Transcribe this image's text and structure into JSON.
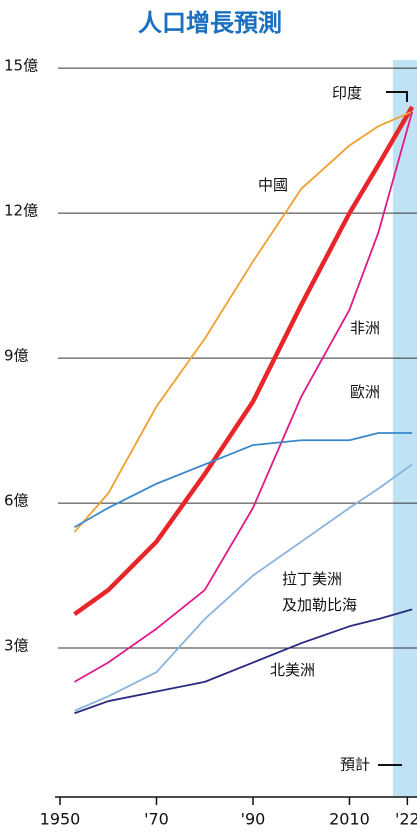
{
  "chart_data": {
    "type": "line",
    "title": "人口增長預測",
    "x": [
      1953,
      1960,
      1970,
      1980,
      1990,
      2000,
      2010,
      2016,
      2023
    ],
    "series": [
      {
        "name": "印度",
        "color": "#e8262a",
        "values": [
          3.7,
          4.2,
          5.2,
          6.6,
          8.1,
          10.1,
          12.0,
          13.0,
          14.2
        ]
      },
      {
        "name": "中國",
        "color": "#f0a030",
        "values": [
          5.4,
          6.2,
          8.0,
          9.4,
          11.0,
          12.5,
          13.4,
          13.8,
          14.1
        ]
      },
      {
        "name": "非洲",
        "color": "#e0198a",
        "values": [
          2.3,
          2.7,
          3.4,
          4.2,
          5.9,
          8.2,
          10.0,
          11.6,
          14.1
        ]
      },
      {
        "name": "歐洲",
        "color": "#3a88c8",
        "values": [
          5.5,
          5.9,
          6.4,
          6.8,
          7.2,
          7.3,
          7.3,
          7.45,
          7.45
        ]
      },
      {
        "name": "拉丁美洲\n及加勒比海",
        "color": "#8ab4de",
        "values": [
          1.7,
          2.0,
          2.5,
          3.6,
          4.5,
          5.2,
          5.9,
          6.3,
          6.8
        ]
      },
      {
        "name": "北美洲",
        "color": "#2a2a80",
        "values": [
          1.65,
          1.9,
          2.1,
          2.3,
          2.7,
          3.1,
          3.45,
          3.6,
          3.8
        ]
      }
    ],
    "xlim": [
      1950,
      2024
    ],
    "xticks": [
      1950,
      {
        "value": 1970,
        "label": "'70"
      },
      {
        "value": 1990,
        "label": "'90"
      },
      2010,
      {
        "value": 2022,
        "label": "'22"
      }
    ],
    "ylim": [
      0,
      15.5
    ],
    "yticks": [
      {
        "value": 3,
        "label": "3億"
      },
      {
        "value": 6,
        "label": "6億"
      },
      {
        "value": 9,
        "label": "9億"
      },
      {
        "value": 12,
        "label": "12億"
      },
      {
        "value": 15,
        "label": "15億"
      }
    ],
    "grid": true,
    "projection_label": "預計",
    "projection_start": 2019
  }
}
